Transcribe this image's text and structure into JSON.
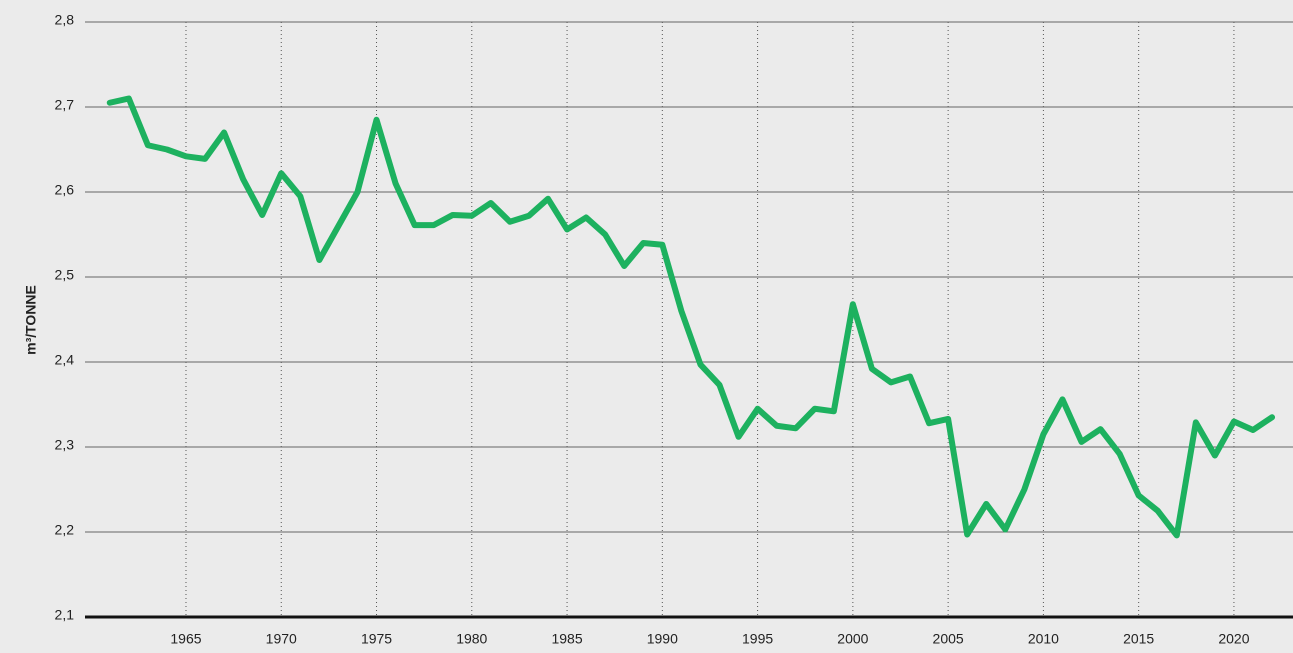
{
  "chart_data": {
    "type": "line",
    "y_label": "m³/TONNE",
    "x": [
      1961,
      1962,
      1963,
      1964,
      1965,
      1966,
      1967,
      1968,
      1969,
      1970,
      1971,
      1972,
      1973,
      1974,
      1975,
      1976,
      1977,
      1978,
      1979,
      1980,
      1981,
      1982,
      1983,
      1984,
      1985,
      1986,
      1987,
      1988,
      1989,
      1990,
      1991,
      1992,
      1993,
      1994,
      1995,
      1996,
      1997,
      1998,
      1999,
      2000,
      2001,
      2002,
      2003,
      2004,
      2005,
      2006,
      2007,
      2008,
      2009,
      2010,
      2011,
      2012,
      2013,
      2014,
      2015,
      2016,
      2017,
      2018,
      2019,
      2020,
      2021,
      2022
    ],
    "series": [
      {
        "color": "#1db15f",
        "values": [
          2.705,
          2.71,
          2.655,
          2.65,
          2.642,
          2.639,
          2.67,
          2.615,
          2.573,
          2.622,
          2.595,
          2.52,
          2.56,
          2.6,
          2.685,
          2.61,
          2.561,
          2.561,
          2.573,
          2.572,
          2.587,
          2.565,
          2.572,
          2.592,
          2.556,
          2.57,
          2.55,
          2.513,
          2.54,
          2.538,
          2.46,
          2.397,
          2.373,
          2.312,
          2.345,
          2.325,
          2.322,
          2.345,
          2.342,
          2.468,
          2.392,
          2.376,
          2.383,
          2.328,
          2.333,
          2.197,
          2.233,
          2.203,
          2.25,
          2.315,
          2.356,
          2.306,
          2.321,
          2.292,
          2.243,
          2.225,
          2.196,
          2.329,
          2.29,
          2.33,
          2.32,
          2.335
        ]
      }
    ],
    "xlim": [
      1959.7,
      2023.1
    ],
    "xticks": [
      1965,
      1970,
      1975,
      1980,
      1985,
      1990,
      1995,
      2000,
      2005,
      2010,
      2015,
      2020
    ],
    "ylim": [
      2.1,
      2.8
    ],
    "yticks": [
      {
        "value": 2.1,
        "label": "2,1"
      },
      {
        "value": 2.2,
        "label": "2,2"
      },
      {
        "value": 2.3,
        "label": "2,3"
      },
      {
        "value": 2.4,
        "label": "2,4"
      },
      {
        "value": 2.5,
        "label": "2,5"
      },
      {
        "value": 2.6,
        "label": "2,6"
      },
      {
        "value": 2.7,
        "label": "2,7"
      },
      {
        "value": 2.8,
        "label": "2,8"
      }
    ],
    "grid": true
  }
}
